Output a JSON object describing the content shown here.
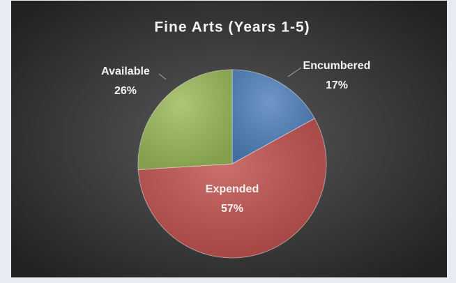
{
  "chart_data": {
    "type": "pie",
    "title": "Fine Arts (Years 1-5)",
    "categories": [
      "Encumbered",
      "Expended",
      "Available"
    ],
    "values": [
      17,
      57,
      26
    ],
    "value_labels": [
      "17%",
      "57%",
      "26%"
    ],
    "colors": [
      "#4f81bd",
      "#c0504d",
      "#9bbb59"
    ]
  }
}
